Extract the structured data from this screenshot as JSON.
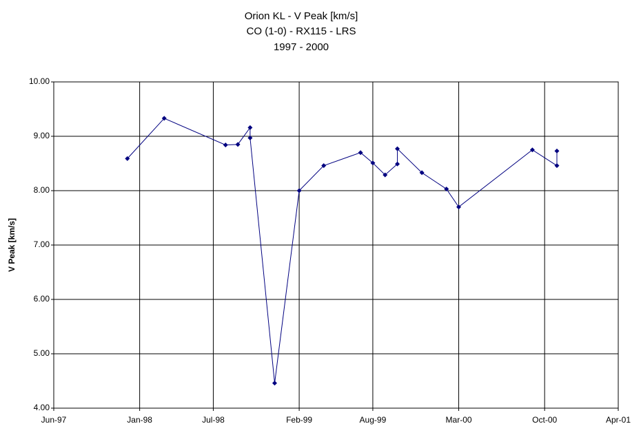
{
  "chart_data": {
    "type": "line",
    "title": [
      "Orion KL - V Peak [km/s]",
      "CO (1-0) - RX115 - LRS",
      "1997 - 2000"
    ],
    "y_label": "V Peak [km/s]",
    "x": [
      "1997-12",
      "1998-03",
      "1998-08",
      "1998-09",
      "1998-10",
      "1998-10",
      "1998-12",
      "1999-02",
      "1999-04",
      "1999-07",
      "1999-08",
      "1999-09",
      "1999-10",
      "1999-10",
      "1999-12",
      "2000-02",
      "2000-03",
      "2000-09",
      "2000-11",
      "2000-11"
    ],
    "series": [
      {
        "name": "V Peak",
        "color": "#000080",
        "values": [
          8.59,
          9.33,
          8.84,
          8.85,
          9.16,
          8.97,
          4.46,
          8.0,
          8.46,
          8.7,
          8.51,
          8.29,
          8.49,
          8.77,
          8.33,
          8.03,
          7.7,
          8.75,
          8.46,
          8.73
        ]
      }
    ],
    "xlim": [
      "1997-06",
      "2001-04"
    ],
    "xticks": [
      {
        "value": "1997-06",
        "label": "Jun-97"
      },
      {
        "value": "1998-01",
        "label": "Jan-98"
      },
      {
        "value": "1998-07",
        "label": "Jul-98"
      },
      {
        "value": "1999-02",
        "label": "Feb-99"
      },
      {
        "value": "1999-08",
        "label": "Aug-99"
      },
      {
        "value": "2000-03",
        "label": "Mar-00"
      },
      {
        "value": "2000-10",
        "label": "Oct-00"
      },
      {
        "value": "2001-04",
        "label": "Apr-01"
      }
    ],
    "ylim": [
      4,
      10
    ],
    "yticks": [
      {
        "value": 4,
        "label": "4.00"
      },
      {
        "value": 5,
        "label": "5.00"
      },
      {
        "value": 6,
        "label": "6.00"
      },
      {
        "value": 7,
        "label": "7.00"
      },
      {
        "value": 8,
        "label": "8.00"
      },
      {
        "value": 9,
        "label": "9.00"
      },
      {
        "value": 10,
        "label": "10.00"
      }
    ],
    "grid": true
  }
}
